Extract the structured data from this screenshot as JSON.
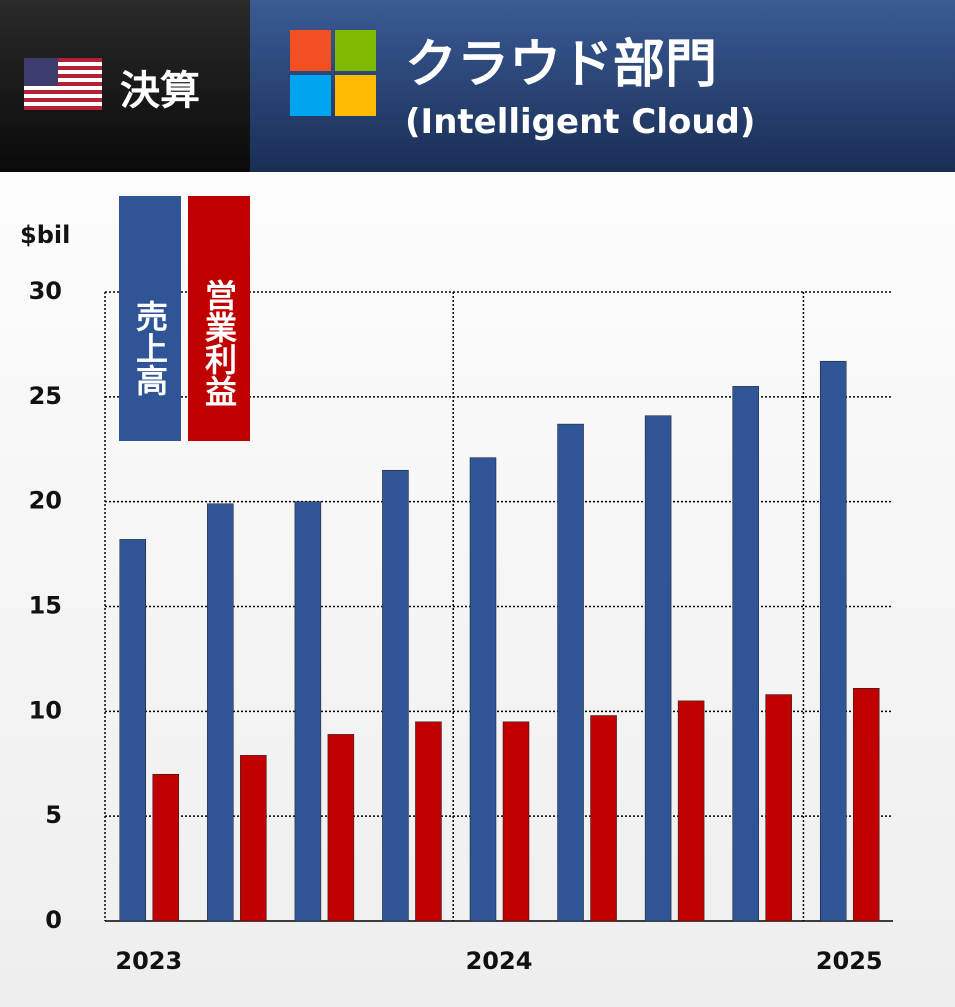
{
  "header": {
    "label": "決算"
  },
  "chart_data": {
    "type": "bar",
    "title": "クラウド部門",
    "subtitle": "(Intelligent Cloud)",
    "y_label": "$bil",
    "categories": [
      "2023",
      null,
      null,
      null,
      "2024",
      null,
      null,
      null,
      "2025"
    ],
    "series": [
      {
        "name": "売上高",
        "color": "#2f5597",
        "values": [
          18.2,
          19.9,
          20.0,
          21.5,
          22.1,
          23.7,
          24.1,
          25.5,
          26.7
        ]
      },
      {
        "name": "営業利益",
        "color": "#c00000",
        "values": [
          7.0,
          7.9,
          8.9,
          9.5,
          9.5,
          9.8,
          10.5,
          10.8,
          11.1
        ]
      }
    ],
    "ylim": [
      0,
      30
    ],
    "yticks": [
      0,
      5,
      10,
      15,
      20,
      25,
      30
    ],
    "grid": true
  }
}
